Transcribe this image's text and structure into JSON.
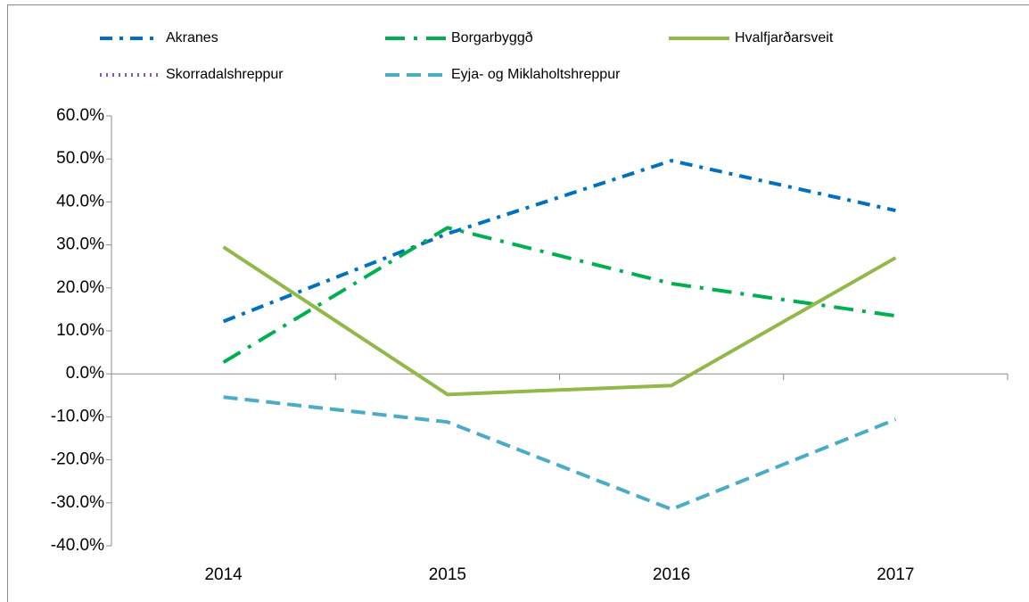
{
  "chart_data": {
    "type": "line",
    "categories": [
      "2014",
      "2015",
      "2016",
      "2017"
    ],
    "series": [
      {
        "name": "Akranes",
        "color": "#0070c0",
        "values": [
          12.2,
          32.6,
          49.6,
          38.0
        ]
      },
      {
        "name": "Borgarbyggð",
        "color": "#00b050",
        "values": [
          2.7,
          34.0,
          21.0,
          13.5
        ]
      },
      {
        "name": "Hvalfjarðarsveit",
        "color": "#92b84a",
        "values": [
          29.5,
          -4.8,
          -2.7,
          27.0
        ]
      },
      {
        "name": "Skorradalshreppur",
        "color": "#7f5fa0",
        "values": [
          null,
          null,
          null,
          null
        ]
      },
      {
        "name": "Eyja- og Miklaholtshreppur",
        "color": "#4bacc6",
        "values": [
          -5.4,
          -11.2,
          -31.5,
          -10.6
        ]
      }
    ],
    "ylim": [
      -40,
      60
    ],
    "yticks": [
      {
        "value": -40,
        "label": "-40.0%"
      },
      {
        "value": -30,
        "label": "-30.0%"
      },
      {
        "value": -20,
        "label": "-20.0%"
      },
      {
        "value": -10,
        "label": "-10.0%"
      },
      {
        "value": 0,
        "label": "0.0%"
      },
      {
        "value": 10,
        "label": "10.0%"
      },
      {
        "value": 20,
        "label": "20.0%"
      },
      {
        "value": 30,
        "label": "30.0%"
      },
      {
        "value": 40,
        "label": "40.0%"
      },
      {
        "value": 50,
        "label": "50.0%"
      },
      {
        "value": 60,
        "label": "60.0%"
      }
    ],
    "grid": false,
    "legend": "top"
  }
}
